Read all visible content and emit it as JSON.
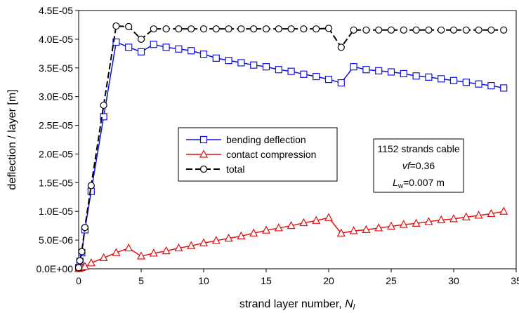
{
  "chart_data": {
    "type": "line",
    "xlabel": "strand layer number, ",
    "xlabel_var": "N",
    "xlabel_sub": "l",
    "ylabel": "deflection / layer [m]",
    "xlim": [
      0,
      35
    ],
    "ylim": [
      0,
      4.5e-05
    ],
    "xticks": [
      "0",
      "5",
      "10",
      "15",
      "20",
      "25",
      "30",
      "35"
    ],
    "yticks": [
      "0.0E+00",
      "5.0E-06",
      "1.0E-05",
      "1.5E-05",
      "2.0E-05",
      "2.5E-05",
      "3.0E-05",
      "3.5E-05",
      "4.0E-05",
      "4.5E-05"
    ],
    "grid": false,
    "legend_position": "center",
    "series": [
      {
        "name": "bending deflection",
        "color": "#1010e0",
        "marker": "square",
        "x": [
          0,
          0.1,
          0.25,
          0.5,
          1,
          2,
          3,
          4,
          5,
          6,
          7,
          8,
          9,
          10,
          11,
          12,
          13,
          14,
          15,
          16,
          17,
          18,
          19,
          20,
          21,
          22,
          23,
          24,
          25,
          26,
          27,
          28,
          29,
          30,
          31,
          32,
          33,
          34
        ],
        "values": [
          2e-07,
          1.3e-06,
          2.8e-06,
          6.8e-06,
          1.35e-05,
          2.65e-05,
          3.95e-05,
          3.86e-05,
          3.78e-05,
          3.91e-05,
          3.86e-05,
          3.83e-05,
          3.8e-05,
          3.74e-05,
          3.67e-05,
          3.63e-05,
          3.59e-05,
          3.55e-05,
          3.52e-05,
          3.47e-05,
          3.44e-05,
          3.39e-05,
          3.35e-05,
          3.3e-05,
          3.24e-05,
          3.52e-05,
          3.47e-05,
          3.45e-05,
          3.43e-05,
          3.4e-05,
          3.36e-05,
          3.34e-05,
          3.31e-05,
          3.28e-05,
          3.25e-05,
          3.22e-05,
          3.19e-05,
          3.15e-05
        ]
      },
      {
        "name": "contact compression",
        "color": "#e01010",
        "marker": "triangle",
        "x": [
          0,
          0.1,
          0.25,
          0.5,
          1,
          2,
          3,
          4,
          5,
          6,
          7,
          8,
          9,
          10,
          11,
          12,
          13,
          14,
          15,
          16,
          17,
          18,
          19,
          20,
          21,
          22,
          23,
          24,
          25,
          26,
          27,
          28,
          29,
          30,
          31,
          32,
          33,
          34
        ],
        "values": [
          0,
          1e-07,
          2e-07,
          4e-07,
          1e-06,
          1.9e-06,
          2.8e-06,
          3.6e-06,
          2.2e-06,
          2.7e-06,
          3.1e-06,
          3.6e-06,
          4e-06,
          4.5e-06,
          4.9e-06,
          5.3e-06,
          5.7e-06,
          6.2e-06,
          6.7e-06,
          7.1e-06,
          7.5e-06,
          8e-06,
          8.4e-06,
          8.9e-06,
          6.2e-06,
          6.6e-06,
          6.8e-06,
          7.1e-06,
          7.4e-06,
          7.7e-06,
          7.9e-06,
          8.2e-06,
          8.5e-06,
          8.7e-06,
          9e-06,
          9.3e-06,
          9.6e-06,
          1e-05
        ]
      },
      {
        "name": "total",
        "color": "#000000",
        "marker": "circle",
        "dashed": true,
        "x": [
          0,
          0.1,
          0.25,
          0.5,
          1,
          2,
          3,
          4,
          5,
          6,
          7,
          8,
          9,
          10,
          11,
          12,
          13,
          14,
          15,
          16,
          17,
          18,
          19,
          20,
          21,
          22,
          23,
          24,
          25,
          26,
          27,
          28,
          29,
          30,
          31,
          32,
          33,
          34
        ],
        "values": [
          2e-07,
          1.4e-06,
          3e-06,
          7.2e-06,
          1.45e-05,
          2.85e-05,
          4.23e-05,
          4.22e-05,
          4e-05,
          4.18e-05,
          4.18e-05,
          4.18e-05,
          4.18e-05,
          4.18e-05,
          4.18e-05,
          4.18e-05,
          4.18e-05,
          4.18e-05,
          4.18e-05,
          4.18e-05,
          4.18e-05,
          4.18e-05,
          4.18e-05,
          4.19e-05,
          3.86e-05,
          4.16e-05,
          4.16e-05,
          4.16e-05,
          4.16e-05,
          4.16e-05,
          4.16e-05,
          4.16e-05,
          4.16e-05,
          4.16e-05,
          4.16e-05,
          4.16e-05,
          4.16e-05,
          4.16e-05
        ]
      }
    ],
    "annotation": {
      "line1": "1152 strands cable",
      "line2_var": "vf",
      "line2_rest": "=0.36",
      "line3_var": "L",
      "line3_sub": "w",
      "line3_rest": "=0.007 m"
    }
  }
}
